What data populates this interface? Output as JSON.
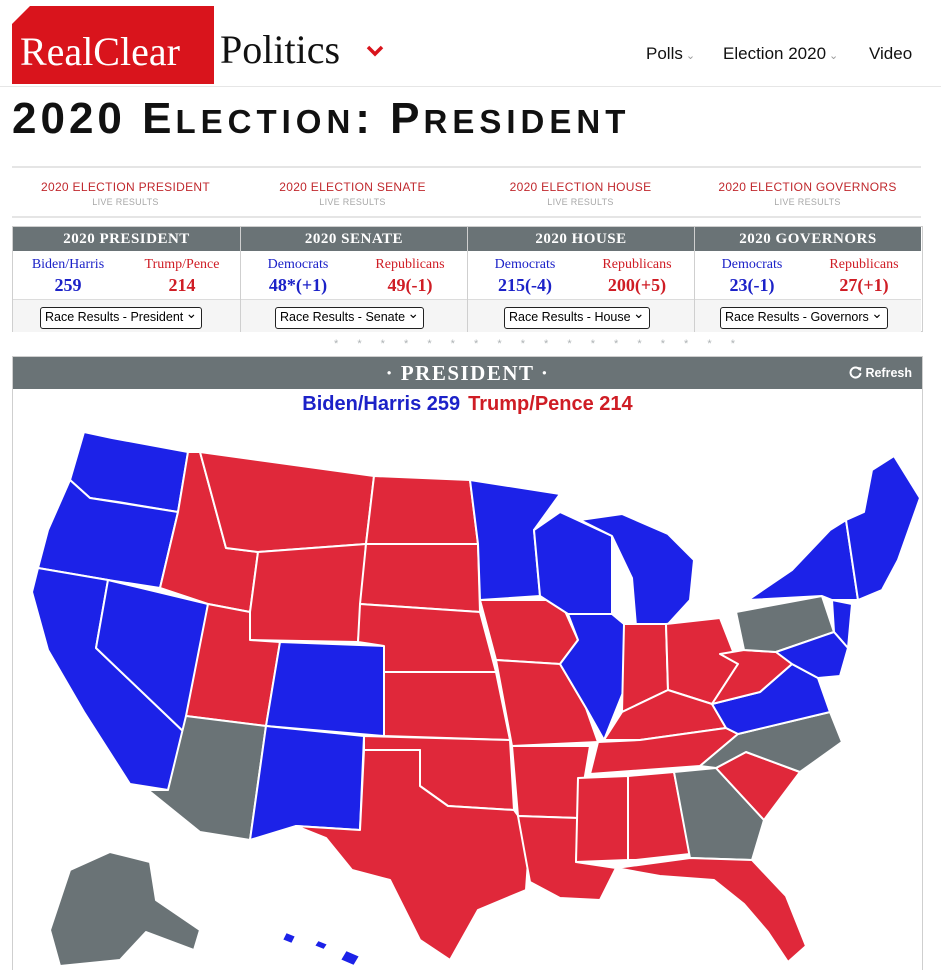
{
  "header": {
    "logo_red": "RealClear",
    "logo_black": "Politics",
    "nav": [
      {
        "label": "Polls",
        "caret": true
      },
      {
        "label": "Election 2020",
        "caret": true
      },
      {
        "label": "Video",
        "caret": false
      }
    ]
  },
  "page_title": {
    "lead": "2020 E",
    "w1": "LECTION",
    "colon": ": P",
    "w2": "RESIDENT"
  },
  "live_links": [
    {
      "title": "2020 ELECTION PRESIDENT",
      "sub": "LIVE RESULTS"
    },
    {
      "title": "2020 ELECTION SENATE",
      "sub": "LIVE RESULTS"
    },
    {
      "title": "2020 ELECTION HOUSE",
      "sub": "LIVE RESULTS"
    },
    {
      "title": "2020 ELECTION GOVERNORS",
      "sub": "LIVE RESULTS"
    }
  ],
  "summary": [
    {
      "head": "2020 PRESIDENT",
      "left_label": "Biden/Harris",
      "left_value": "259",
      "right_label": "Trump/Pence",
      "right_value": "214",
      "select": "Race Results - President"
    },
    {
      "head": "2020 SENATE",
      "left_label": "Democrats",
      "left_value": "48*(+1)",
      "right_label": "Republicans",
      "right_value": "49(-1)",
      "select": "Race Results - Senate"
    },
    {
      "head": "2020 HOUSE",
      "left_label": "Democrats",
      "left_value": "215(-4)",
      "right_label": "Republicans",
      "right_value": "200(+5)",
      "select": "Race Results - House"
    },
    {
      "head": "2020 GOVERNORS",
      "left_label": "Democrats",
      "left_value": "23(-1)",
      "right_label": "Republicans",
      "right_value": "27(+1)",
      "select": "Race Results - Governors"
    }
  ],
  "divider_dots": "* * * * * * * * * * * * * * * * * *",
  "map_panel": {
    "title": "· PRESIDENT ·",
    "refresh": "Refresh",
    "dem": "Biden/Harris 259",
    "rep": "Trump/Pence 214"
  },
  "colors": {
    "dem": "#1c22e8",
    "rep": "#e0283a",
    "undecided": "#6a7376",
    "brand": "#d9141c"
  },
  "map_states": {
    "WA": "dem",
    "OR": "dem",
    "CA": "dem",
    "NV": "dem",
    "ID": "rep",
    "MT": "rep",
    "WY": "rep",
    "UT": "rep",
    "CO": "dem",
    "AZ": "undecided",
    "NM": "dem",
    "ND": "rep",
    "SD": "rep",
    "NE": "rep",
    "KS": "rep",
    "OK": "rep",
    "TX": "rep",
    "MN": "dem",
    "IA": "rep",
    "MO": "rep",
    "AR": "rep",
    "LA": "rep",
    "WI": "dem",
    "IL": "dem",
    "MI": "dem",
    "IN": "rep",
    "OH": "rep",
    "KY": "rep",
    "TN": "rep",
    "MS": "rep",
    "AL": "rep",
    "GA": "undecided",
    "FL": "rep",
    "SC": "rep",
    "NC": "undecided",
    "VA": "dem",
    "WV": "rep",
    "PA": "undecided",
    "NY": "dem",
    "NE_REGION": "dem",
    "MD": "dem",
    "NJ": "dem",
    "AK": "undecided",
    "HI": "dem"
  }
}
